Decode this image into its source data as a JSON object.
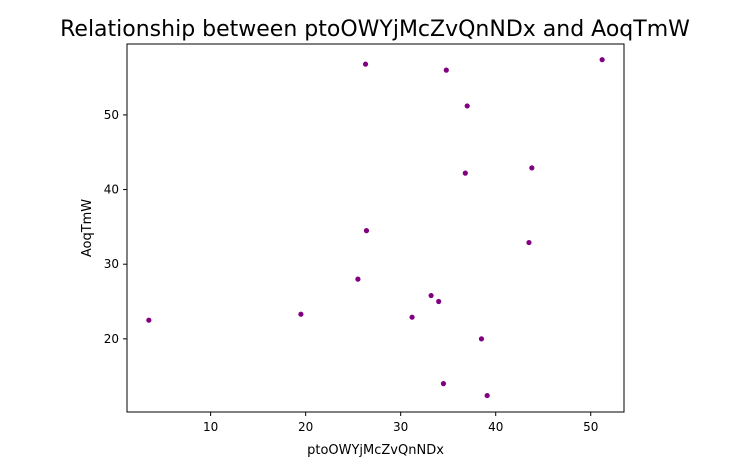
{
  "chart_data": {
    "type": "scatter",
    "title": "Relationship between ptoOWYjMcZvQnNDx and AoqTmW",
    "xlabel": "ptoOWYjMcZvQnNDx",
    "ylabel": "AoqTmW",
    "xlim": [
      1.2,
      53.5
    ],
    "ylim": [
      10.2,
      59.5
    ],
    "xticks": [
      10,
      20,
      30,
      40,
      50
    ],
    "yticks": [
      20,
      30,
      40,
      50
    ],
    "grid": false,
    "marker_color": "#800080",
    "series": [
      {
        "x": [
          3.5,
          19.5,
          25.5,
          26.3,
          26.4,
          31.2,
          33.2,
          34.0,
          34.5,
          34.8,
          36.8,
          37.0,
          38.5,
          39.1,
          43.5,
          43.8,
          51.2
        ],
        "y": [
          22.5,
          23.3,
          28.0,
          56.8,
          34.5,
          22.9,
          25.8,
          25.0,
          14.0,
          56.0,
          42.2,
          51.2,
          20.0,
          12.4,
          32.9,
          42.9,
          57.4
        ]
      }
    ]
  }
}
